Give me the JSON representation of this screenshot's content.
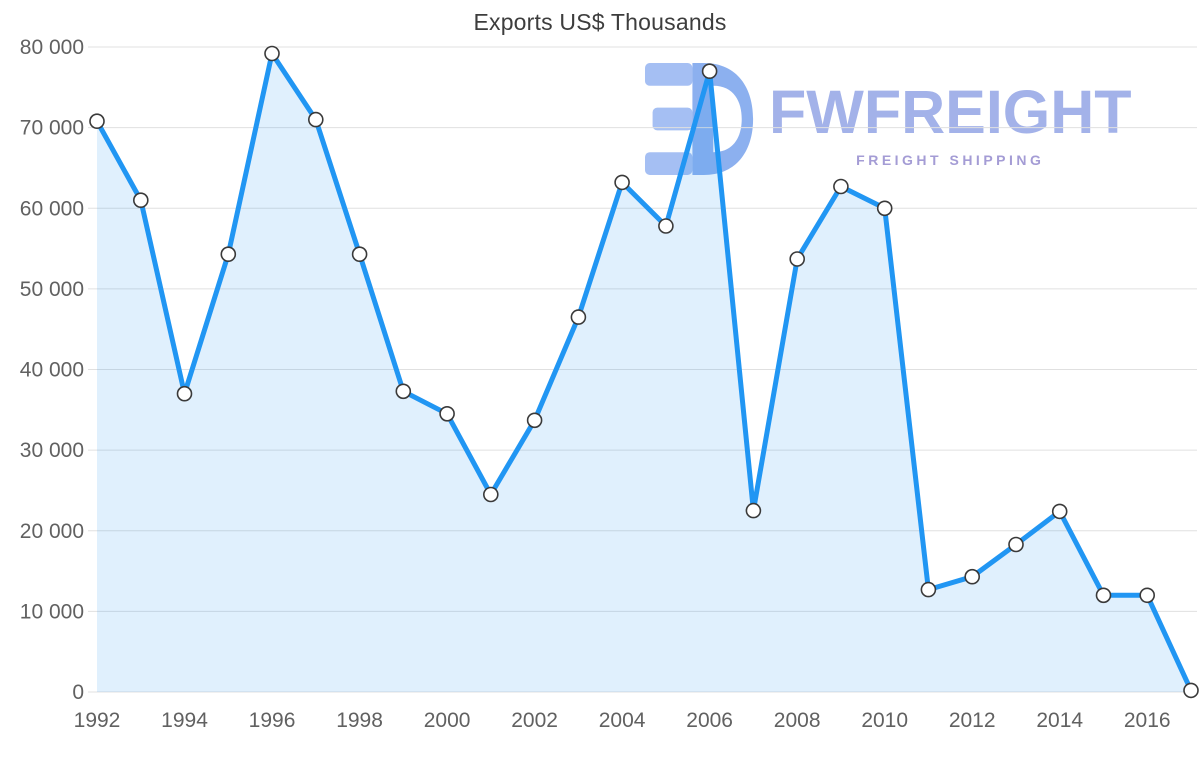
{
  "title": "Exports US$ Thousands",
  "watermark": {
    "brand": "FWFREIGHT",
    "tagline": "FREIGHT SHIPPING"
  },
  "chart_data": {
    "type": "area",
    "title": "Exports US$ Thousands",
    "xlabel": "",
    "ylabel": "",
    "x": [
      1992,
      1993,
      1994,
      1995,
      1996,
      1997,
      1998,
      1999,
      2000,
      2001,
      2002,
      2003,
      2004,
      2005,
      2006,
      2007,
      2008,
      2009,
      2010,
      2011,
      2012,
      2013,
      2014,
      2015,
      2016,
      2017
    ],
    "values": [
      70800,
      61000,
      37000,
      54300,
      79200,
      71000,
      54300,
      37300,
      34500,
      24500,
      33700,
      46500,
      63200,
      57800,
      77000,
      22500,
      53700,
      62700,
      60000,
      12700,
      14300,
      18300,
      22400,
      12000,
      12000,
      200
    ],
    "ylim": [
      0,
      80000
    ],
    "ytick_step": 10000,
    "ytick_labels": [
      "0",
      "10 000",
      "20 000",
      "30 000",
      "40 000",
      "50 000",
      "60 000",
      "70 000",
      "80 000"
    ],
    "xtick_labels": [
      "1992",
      "1994",
      "1996",
      "1998",
      "2000",
      "2002",
      "2004",
      "2006",
      "2008",
      "2010",
      "2012",
      "2014",
      "2016"
    ],
    "grid": "horizontal",
    "legend": "none",
    "colors": {
      "line": "#2196f3",
      "fill": "rgba(33,150,243,0.14)",
      "marker_fill": "#ffffff",
      "marker_stroke": "#3a3a3a",
      "grid": "#e0e0e0",
      "tick_text": "#616161",
      "title_text": "#3d3d3d",
      "watermark_brand": "#a3b2e9",
      "watermark_tagline": "#a49cd5",
      "logo_light": "#a5bff3",
      "logo_dark": "#8cb0ef"
    }
  }
}
